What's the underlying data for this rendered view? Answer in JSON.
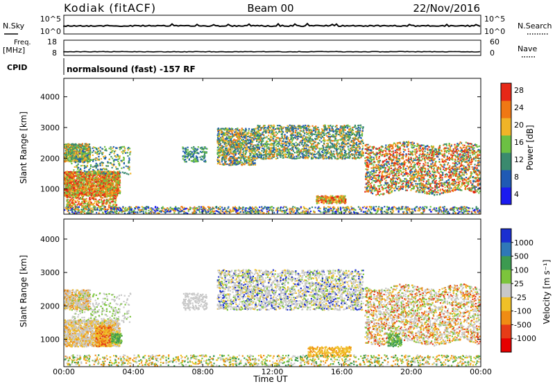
{
  "header": {
    "station": "Kodiak (fitACF)",
    "beam": "Beam 00",
    "date": "22/Nov/2016"
  },
  "summary": {
    "nsky_label": "N.Sky",
    "nsky_ticks": [
      "10^5",
      "10^0"
    ],
    "nsearch_label": "N.Search",
    "nsearch_ticks": [
      "10^5",
      "10^0"
    ],
    "freq_label": "Freq.",
    "freq_unit": "[MHz]",
    "freq_ticks": [
      "18",
      "8"
    ],
    "nave_label": "Nave",
    "nave_ticks": [
      "60",
      "0"
    ],
    "cpid_label": "CPID",
    "cpid_text": "normalsound (fast)  -157 RF"
  },
  "chart_data": [
    {
      "type": "heatmap",
      "name": "power",
      "ylabel": "Slant Range [km]",
      "yticks": [
        "1000",
        "2000",
        "3000",
        "4000"
      ],
      "ylim": [
        180,
        4600
      ],
      "xlim": [
        0,
        24
      ],
      "colorbar": {
        "label": "Power [dB]",
        "ticks": [
          "4",
          "8",
          "12",
          "16",
          "20",
          "24",
          "28"
        ],
        "colors": [
          "#1b1bf0",
          "#1f5ab4",
          "#3a8a6e",
          "#6cc043",
          "#f0b428",
          "#f07814",
          "#e62817"
        ]
      }
    },
    {
      "type": "heatmap",
      "name": "velocity",
      "ylabel": "Slant Range [km]",
      "yticks": [
        "1000",
        "2000",
        "3000",
        "4000"
      ],
      "ylim": [
        180,
        4600
      ],
      "xlim": [
        0,
        24
      ],
      "colorbar": {
        "label": "Velocity [m s⁻¹]",
        "ticks": [
          "1000",
          "500",
          "100",
          "25",
          "-25",
          "-100",
          "-500",
          "-1000"
        ],
        "colors": [
          "#1b2fd0",
          "#2f78b8",
          "#3c9a50",
          "#7cc43c",
          "#c8c8c8",
          "#f0c028",
          "#f08c14",
          "#e63c17",
          "#e60000"
        ]
      }
    }
  ],
  "xaxis": {
    "label": "Time UT",
    "ticks": [
      "00:00",
      "04:00",
      "08:00",
      "12:00",
      "16:00",
      "20:00",
      "00:00"
    ]
  }
}
